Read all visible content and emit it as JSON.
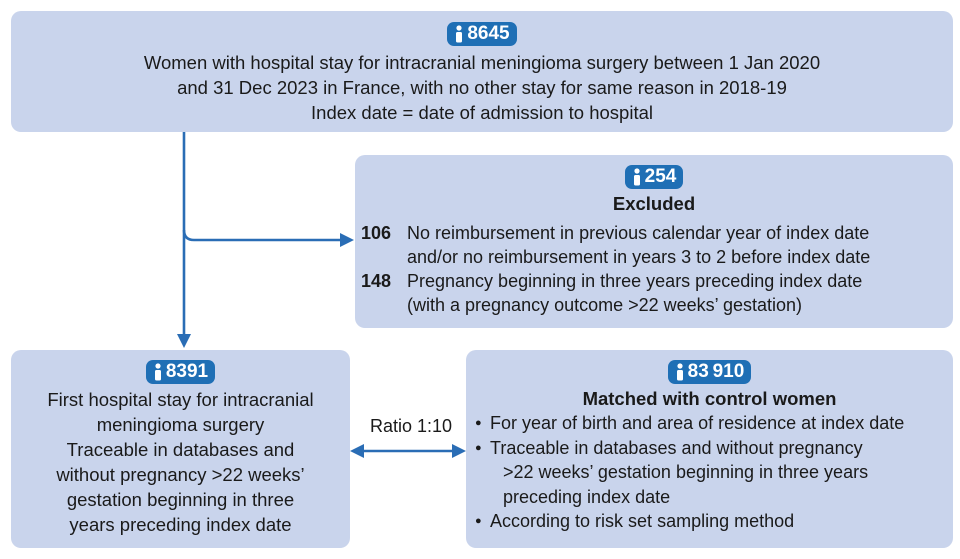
{
  "colors": {
    "box_fill": "#c9d4ec",
    "badge_fill": "#1f6fb5",
    "arrow": "#2a6db5"
  },
  "top": {
    "icon": "person-icon",
    "count": "8645",
    "lines": [
      "Women with hospital stay for intracranial meningioma surgery between 1 Jan 2020",
      "and 31 Dec 2023 in France, with no other stay for same reason in 2018-19",
      "Index date = date of admission to hospital"
    ]
  },
  "excluded": {
    "icon": "person-icon",
    "count": "254",
    "title": "Excluded",
    "items": [
      {
        "num": "106",
        "line1": "No reimbursement in previous calendar year of index date",
        "line2": "and/or no reimbursement in years 3 to 2 before index date"
      },
      {
        "num": "148",
        "line1": "Pregnancy beginning in three years preceding index date",
        "line2": "(with a pregnancy outcome >22 weeks’ gestation)"
      }
    ]
  },
  "cases": {
    "icon": "person-icon",
    "count": "8391",
    "lines": [
      "First hospital stay for intracranial",
      "meningioma surgery",
      "Traceable in databases and",
      "without pregnancy >22 weeks’",
      "gestation beginning in three",
      "years preceding index date"
    ]
  },
  "ratio_label": "Ratio 1:10",
  "controls": {
    "icon": "person-icon",
    "count": "83 910",
    "title": "Matched with control women",
    "bullet_1": "For year of birth and area of residence at index date",
    "bullet_2_line1": "Traceable in databases and without pregnancy",
    "bullet_2_line2": ">22 weeks’ gestation beginning in three years",
    "bullet_2_line3": "preceding index date",
    "bullet_3": "According to risk set sampling method",
    "bullet_char": "●"
  }
}
